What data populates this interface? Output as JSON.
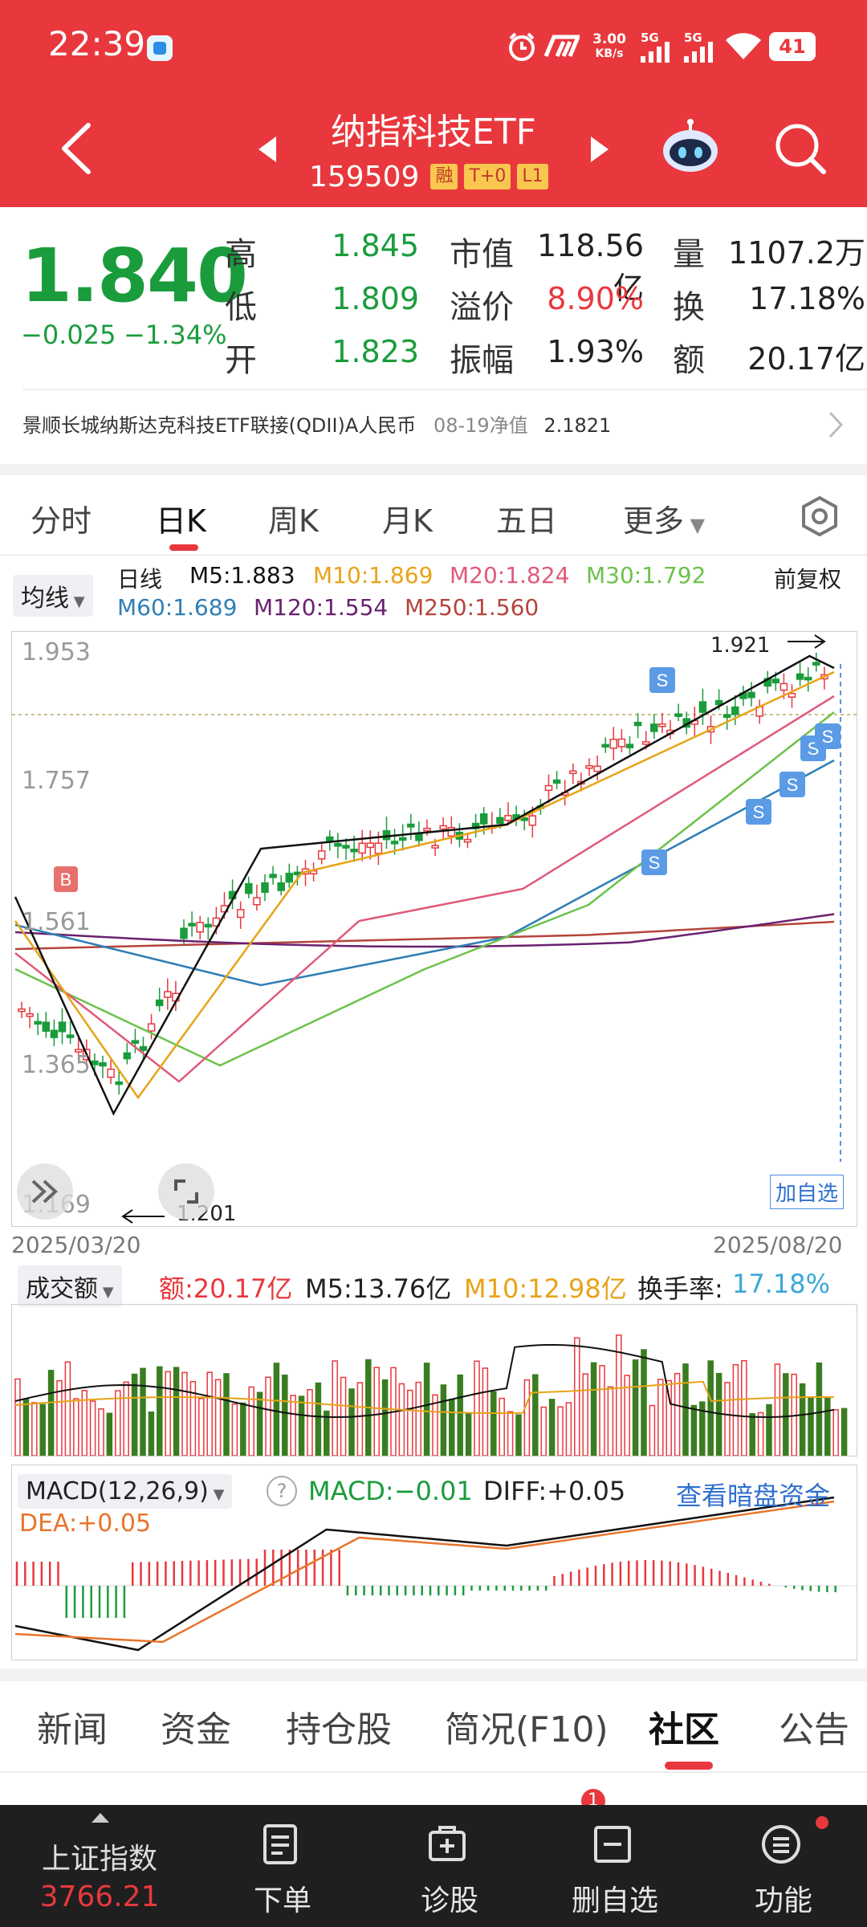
{
  "status_bar": {
    "time": "22:39",
    "network_speed_top": "3.00",
    "network_speed_bottom": "KB/s",
    "sim1": "5G",
    "sim2": "5G",
    "battery": "41"
  },
  "header": {
    "title": "纳指科技ETF",
    "code": "159509",
    "tags": [
      "融",
      "T+0",
      "L1"
    ]
  },
  "quote": {
    "price": "1.840",
    "change": "−0.025",
    "change_pct": "−1.34%",
    "high_label": "高",
    "high": "1.845",
    "low_label": "低",
    "low": "1.809",
    "open_label": "开",
    "open": "1.823",
    "mktcap_label": "市值",
    "mktcap": "118.56亿",
    "premium_label": "溢价",
    "premium": "8.90%",
    "amplitude_label": "振幅",
    "amplitude": "1.93%",
    "volume_label": "量",
    "volume": "1107.2万",
    "turnover_label": "换",
    "turnover": "17.18%",
    "amount_label": "额",
    "amount": "20.17亿"
  },
  "fund": {
    "name": "景顺长城纳斯达克科技ETF联接(QDII)A人民币",
    "nav_label": "08-19净值",
    "nav": "2.1821"
  },
  "tabs": [
    "分时",
    "日K",
    "周K",
    "月K",
    "五日",
    "更多"
  ],
  "active_tab": "日K",
  "ma_legend": {
    "dropdown": "均线",
    "kind": "日线",
    "m5": "M5:1.883",
    "m10": "M10:1.869",
    "m20": "M20:1.824",
    "m30": "M30:1.792",
    "m60": "M60:1.689",
    "m120": "M120:1.554",
    "m250": "M250:1.560",
    "adjust": "前复权"
  },
  "kline": {
    "y_ticks": [
      "1.953",
      "1.757",
      "1.561",
      "1.365",
      "1.169"
    ],
    "high_mark": "1.921",
    "low_mark": "1.201",
    "start_date": "2025/03/20",
    "end_date": "2025/08/20",
    "add_watch": "加自选",
    "buy_marker": "B",
    "sell_marker": "S"
  },
  "volume_panel": {
    "dropdown": "成交额",
    "amount": "额:20.17亿",
    "m5": "M5:13.76亿",
    "m10": "M10:12.98亿",
    "turnover_label": "换手率:",
    "turnover": "17.18%"
  },
  "macd_panel": {
    "dropdown": "MACD(12,26,9)",
    "help": "?",
    "macd": "MACD:−0.01",
    "diff": "DIFF:+0.05",
    "dea": "DEA:+0.05",
    "link": "查看暗盘资金"
  },
  "bottom_tabs": [
    "新闻",
    "资金",
    "持仓股",
    "简况(F10)",
    "社区",
    "公告"
  ],
  "active_bottom_tab": "社区",
  "nav": {
    "index_name": "上证指数",
    "index_value": "3766.21",
    "items": [
      "下单",
      "诊股",
      "删自选",
      "功能"
    ]
  },
  "colors": {
    "brand_red": "#e8383d",
    "down_green": "#1a9c3c",
    "ma5": "#111111",
    "ma10": "#e8a317",
    "ma20": "#e05a7a",
    "ma30": "#6cc24a",
    "ma60": "#2f7fb5",
    "ma120": "#6a2170",
    "ma250": "#b5443c"
  }
}
